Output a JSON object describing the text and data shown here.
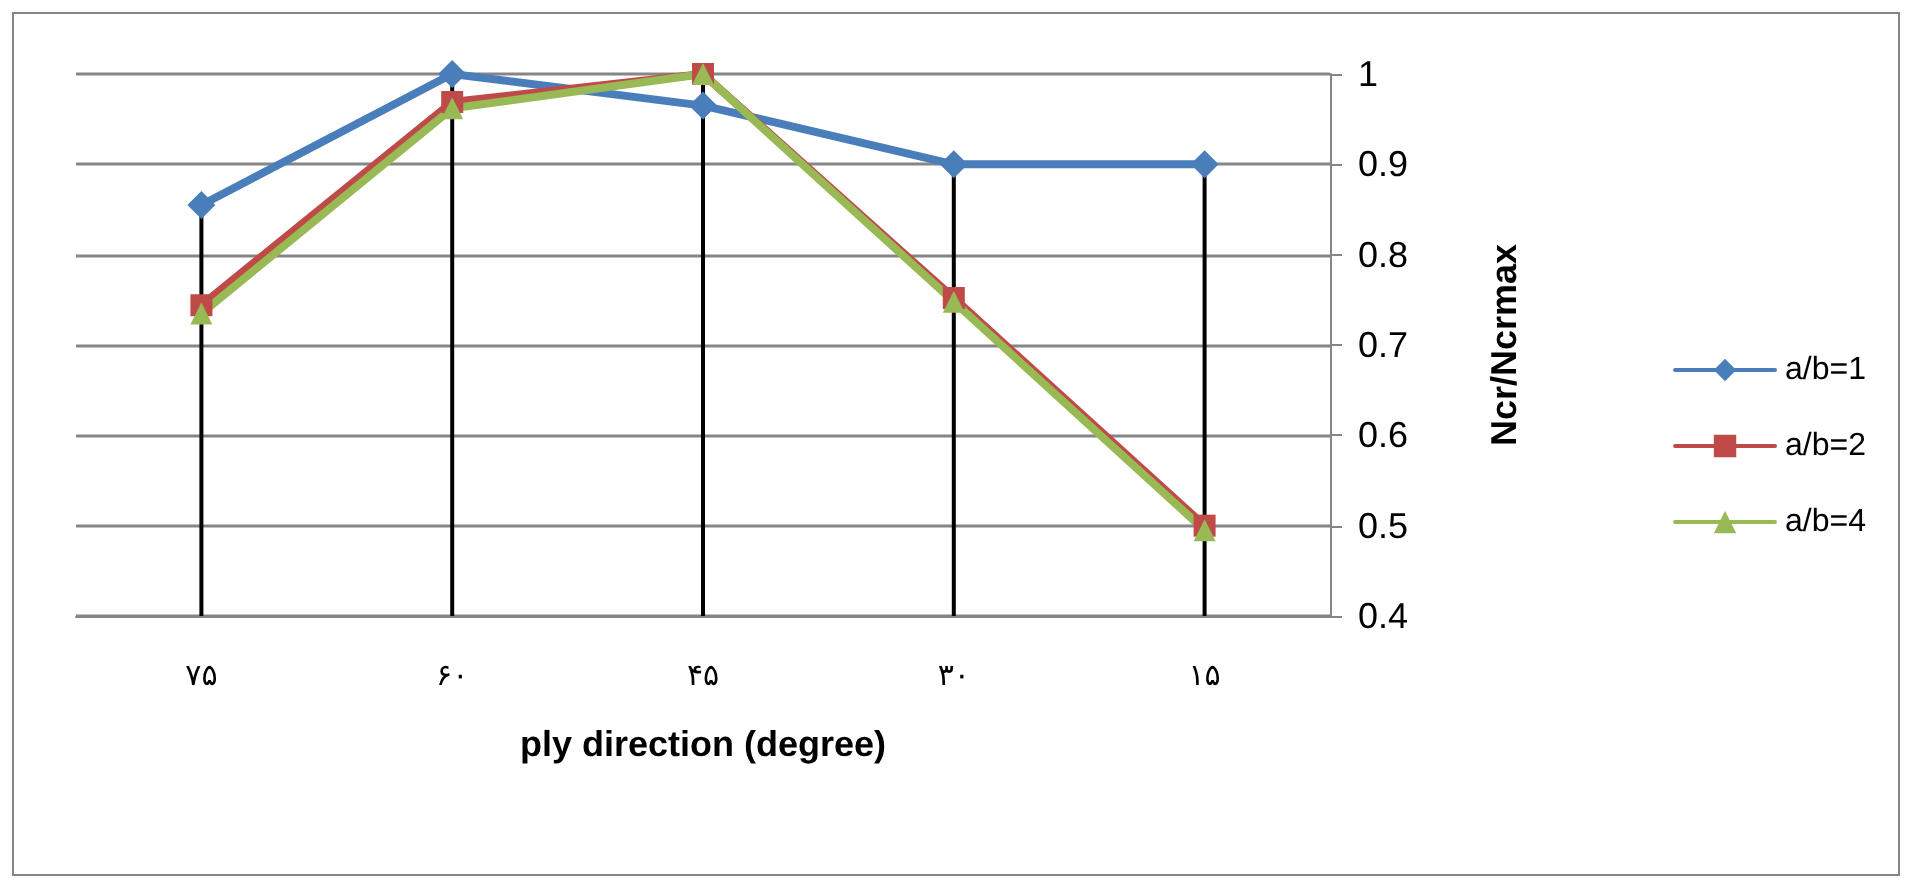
{
  "chart_data": {
    "type": "line",
    "xlabel": "ply direction (degree)",
    "ylabel": "Ncr/Ncrmax",
    "categories": [
      "۷۵",
      "۶۰",
      "۴۵",
      "۳۰",
      "۱۵"
    ],
    "series": [
      {
        "name": "a/b=1",
        "color": "#4a7ebb",
        "marker": "diamond",
        "values": [
          0.855,
          1.0,
          0.965,
          0.9,
          0.9
        ]
      },
      {
        "name": "a/b=2",
        "color": "#be4b48",
        "marker": "square",
        "values": [
          0.744,
          0.969,
          1.0,
          0.752,
          0.5
        ]
      },
      {
        "name": "a/b=4",
        "color": "#98b954",
        "marker": "triangle",
        "values": [
          0.735,
          0.962,
          1.0,
          0.748,
          0.495
        ]
      }
    ],
    "ylim": [
      0.4,
      1
    ],
    "yticks": [
      0.4,
      0.5,
      0.6,
      0.7,
      0.8,
      0.9,
      1
    ],
    "grid": true,
    "legend": "right"
  }
}
